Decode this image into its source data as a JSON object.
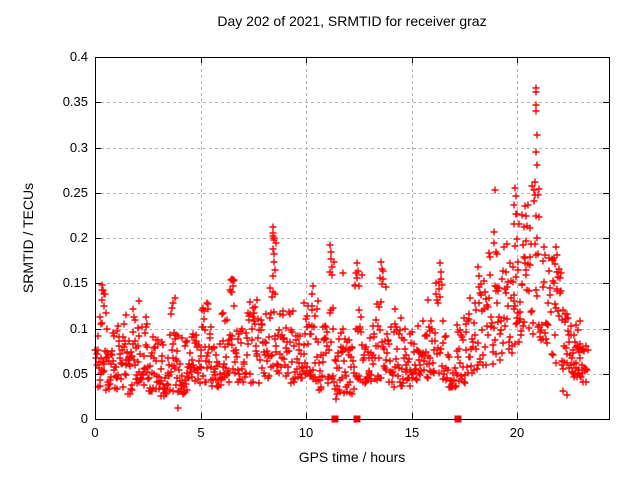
{
  "chart_data": {
    "type": "scatter",
    "title": "Day 202 of 2021, SRMTID for receiver graz",
    "xlabel": "GPS time / hours",
    "ylabel": "SRMTID / TECUs",
    "xlim": [
      0,
      24.36
    ],
    "ylim": [
      0,
      0.4
    ],
    "xticks": [
      0,
      5,
      10,
      15,
      20
    ],
    "xtick_labels": [
      "0",
      "5",
      "10",
      "15",
      "20"
    ],
    "yticks": [
      0,
      0.05,
      0.1,
      0.15,
      0.2,
      0.25,
      0.3,
      0.35,
      0.4
    ],
    "ytick_labels": [
      "0",
      "0.05",
      "0.1",
      "0.15",
      "0.2",
      "0.25",
      "0.3",
      "0.35",
      "0.4"
    ],
    "grid": true,
    "legend": "none",
    "marker": "plus",
    "marker_color": "#ff0000",
    "grid_color": "#b3b3b3",
    "axis_color": "#000000",
    "background_color": "#ffffff",
    "seed": 987654,
    "band_segments": [
      [
        0.0,
        0.3,
        0.035,
        0.1,
        14
      ],
      [
        0.25,
        0.55,
        0.05,
        0.148,
        16,
        1.2
      ],
      [
        0.5,
        1.0,
        0.03,
        0.1,
        24
      ],
      [
        1.0,
        1.5,
        0.033,
        0.105,
        26
      ],
      [
        1.5,
        2.0,
        0.028,
        0.122,
        26
      ],
      [
        2.0,
        2.5,
        0.035,
        0.118,
        26
      ],
      [
        2.5,
        3.0,
        0.03,
        0.092,
        26
      ],
      [
        3.0,
        3.5,
        0.025,
        0.088,
        26
      ],
      [
        3.5,
        4.0,
        0.03,
        0.132,
        26
      ],
      [
        4.0,
        4.5,
        0.028,
        0.092,
        24
      ],
      [
        4.5,
        5.0,
        0.035,
        0.1,
        24
      ],
      [
        5.0,
        5.5,
        0.04,
        0.128,
        26
      ],
      [
        5.5,
        6.0,
        0.035,
        0.092,
        24
      ],
      [
        6.0,
        6.4,
        0.04,
        0.12,
        20
      ],
      [
        6.4,
        6.7,
        0.05,
        0.155,
        16,
        1.3
      ],
      [
        6.7,
        7.2,
        0.04,
        0.1,
        22
      ],
      [
        7.2,
        7.8,
        0.04,
        0.132,
        26
      ],
      [
        7.8,
        8.3,
        0.045,
        0.122,
        24
      ],
      [
        8.3,
        8.6,
        0.05,
        0.21,
        18,
        1.3
      ],
      [
        8.6,
        9.2,
        0.045,
        0.12,
        26
      ],
      [
        9.2,
        9.8,
        0.04,
        0.12,
        26
      ],
      [
        9.8,
        10.2,
        0.045,
        0.13,
        20
      ],
      [
        10.2,
        10.6,
        0.04,
        0.145,
        20
      ],
      [
        10.6,
        11.0,
        0.03,
        0.11,
        20
      ],
      [
        11.0,
        11.35,
        0.04,
        0.19,
        18,
        1.4
      ],
      [
        11.35,
        11.8,
        0.022,
        0.1,
        22
      ],
      [
        11.8,
        12.3,
        0.025,
        0.092,
        24
      ],
      [
        12.3,
        12.65,
        0.04,
        0.17,
        18,
        1.4
      ],
      [
        12.65,
        13.3,
        0.04,
        0.11,
        28
      ],
      [
        13.3,
        13.8,
        0.04,
        0.172,
        24,
        1.5
      ],
      [
        13.8,
        14.5,
        0.035,
        0.115,
        30
      ],
      [
        14.5,
        15.0,
        0.035,
        0.1,
        24
      ],
      [
        15.0,
        15.6,
        0.04,
        0.112,
        26
      ],
      [
        15.6,
        16.1,
        0.045,
        0.126,
        24
      ],
      [
        16.1,
        16.5,
        0.05,
        0.17,
        18,
        1.4
      ],
      [
        16.5,
        17.1,
        0.035,
        0.108,
        24
      ],
      [
        17.1,
        17.6,
        0.04,
        0.12,
        22
      ],
      [
        17.6,
        18.1,
        0.05,
        0.135,
        22
      ],
      [
        18.1,
        18.5,
        0.055,
        0.168,
        18
      ],
      [
        18.5,
        19.0,
        0.06,
        0.185,
        20,
        1.3
      ],
      [
        19.0,
        19.4,
        0.065,
        0.205,
        18,
        1.2
      ],
      [
        19.4,
        19.8,
        0.07,
        0.2,
        18,
        1.2
      ],
      [
        19.8,
        20.15,
        0.08,
        0.258,
        22,
        1.1
      ],
      [
        20.15,
        20.6,
        0.08,
        0.238,
        22,
        1.1
      ],
      [
        20.6,
        21.1,
        0.09,
        0.258,
        24,
        1.1
      ],
      [
        21.1,
        21.6,
        0.075,
        0.185,
        20
      ],
      [
        21.6,
        22.1,
        0.06,
        0.188,
        22,
        1.4
      ],
      [
        22.1,
        22.65,
        0.05,
        0.142,
        26
      ],
      [
        22.65,
        23.05,
        0.045,
        0.115,
        26
      ],
      [
        23.05,
        23.35,
        0.04,
        0.085,
        14
      ]
    ],
    "spike_points": [
      [
        0.35,
        0.148
      ],
      [
        0.38,
        0.143
      ],
      [
        0.42,
        0.138
      ],
      [
        0.33,
        0.131
      ],
      [
        0.45,
        0.125
      ],
      [
        1.45,
        0.115
      ],
      [
        1.8,
        0.121
      ],
      [
        2.1,
        0.13
      ],
      [
        3.8,
        0.134
      ],
      [
        3.72,
        0.128
      ],
      [
        3.93,
        0.012
      ],
      [
        5.3,
        0.128
      ],
      [
        6.5,
        0.155
      ],
      [
        6.55,
        0.147
      ],
      [
        6.45,
        0.14
      ],
      [
        7.7,
        0.131
      ],
      [
        8.42,
        0.212
      ],
      [
        8.45,
        0.205
      ],
      [
        8.48,
        0.198
      ],
      [
        8.44,
        0.188
      ],
      [
        8.5,
        0.182
      ],
      [
        8.47,
        0.173
      ],
      [
        8.52,
        0.165
      ],
      [
        9.9,
        0.128
      ],
      [
        10.35,
        0.147
      ],
      [
        10.3,
        0.138
      ],
      [
        11.15,
        0.192
      ],
      [
        11.2,
        0.185
      ],
      [
        11.18,
        0.177
      ],
      [
        11.22,
        0.168
      ],
      [
        11.25,
        0.159
      ],
      [
        11.75,
        0.161
      ],
      [
        12.42,
        0.172
      ],
      [
        12.45,
        0.164
      ],
      [
        12.4,
        0.156
      ],
      [
        12.5,
        0.147
      ],
      [
        13.55,
        0.174
      ],
      [
        13.6,
        0.166
      ],
      [
        13.5,
        0.156
      ],
      [
        14.2,
        0.121
      ],
      [
        15.8,
        0.131
      ],
      [
        16.35,
        0.172
      ],
      [
        16.38,
        0.162
      ],
      [
        16.32,
        0.151
      ],
      [
        18.15,
        0.168
      ],
      [
        18.2,
        0.158
      ],
      [
        18.95,
        0.253
      ],
      [
        18.9,
        0.207
      ],
      [
        18.92,
        0.195
      ],
      [
        19.0,
        0.185
      ],
      [
        19.9,
        0.255
      ],
      [
        19.95,
        0.246
      ],
      [
        19.85,
        0.236
      ],
      [
        20.0,
        0.226
      ],
      [
        19.88,
        0.216
      ],
      [
        20.4,
        0.235
      ],
      [
        20.45,
        0.224
      ],
      [
        20.35,
        0.212
      ],
      [
        20.9,
        0.366
      ],
      [
        20.92,
        0.361
      ],
      [
        20.9,
        0.347
      ],
      [
        20.91,
        0.34
      ],
      [
        20.95,
        0.314
      ],
      [
        20.9,
        0.295
      ],
      [
        20.93,
        0.281
      ],
      [
        20.87,
        0.262
      ],
      [
        21.0,
        0.247
      ],
      [
        21.3,
        0.19
      ],
      [
        21.85,
        0.19
      ],
      [
        21.88,
        0.181
      ],
      [
        21.82,
        0.171
      ],
      [
        21.9,
        0.162
      ],
      [
        22.2,
        0.031
      ],
      [
        22.35,
        0.027
      ]
    ],
    "baseline_squares": {
      "y": 0,
      "x": [
        11.37,
        12.42,
        17.2
      ]
    }
  }
}
